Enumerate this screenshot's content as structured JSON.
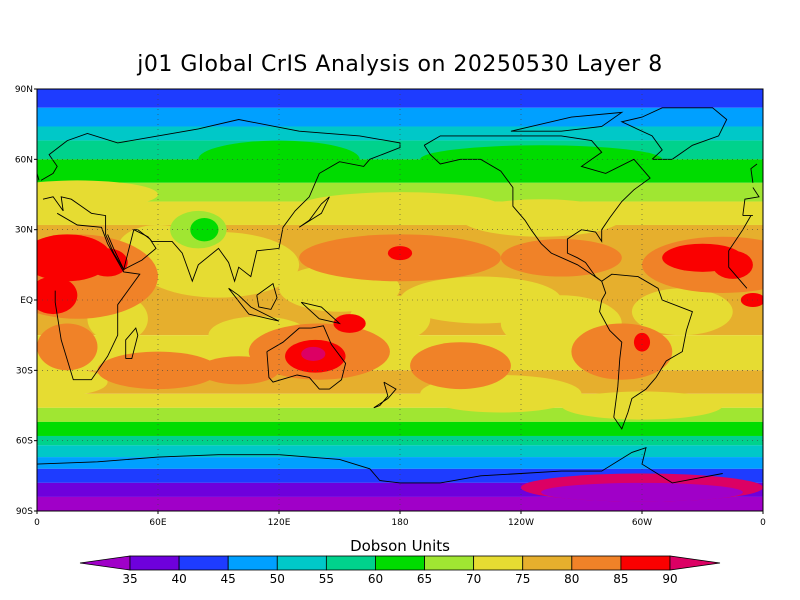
{
  "title": "j01 Global CrIS Analysis on 20250530 Layer 8",
  "colorbar": {
    "title": "Dobson Units",
    "labels": [
      "35",
      "40",
      "45",
      "50",
      "55",
      "60",
      "65",
      "70",
      "75",
      "80",
      "85",
      "90"
    ],
    "colors": [
      "#a000c8",
      "#6e00dc",
      "#1e3cff",
      "#00a0ff",
      "#00c8c8",
      "#00d28c",
      "#00dc00",
      "#a0e632",
      "#e6dc32",
      "#e6af2d",
      "#f08228",
      "#fa0000",
      "#dc0064"
    ]
  },
  "axes": {
    "lat_labels": [
      "90N",
      "60N",
      "30N",
      "EQ",
      "30S",
      "60S",
      "90S"
    ],
    "lon_labels": [
      "0",
      "60E",
      "120E",
      "180",
      "120W",
      "60W",
      "0"
    ]
  },
  "chart_data": {
    "type": "heatmap",
    "title": "j01 Global CrIS Analysis on 20250530 Layer 8",
    "units": "Dobson Units",
    "value_range": [
      35,
      90
    ],
    "x_range": [
      0,
      360
    ],
    "y_range": [
      -90,
      90
    ],
    "features": [
      {
        "lat": 80,
        "lon": 180,
        "value": 47
      },
      {
        "lat": 70,
        "lon": 180,
        "value": 52
      },
      {
        "lat": 55,
        "lon": 180,
        "value": 63
      },
      {
        "lat": 45,
        "lon": 180,
        "value": 70
      },
      {
        "lat": 20,
        "lon": 20,
        "value": 88
      },
      {
        "lat": 0,
        "lon": 10,
        "value": 88
      },
      {
        "lat": 20,
        "lon": 330,
        "value": 88
      },
      {
        "lat": 20,
        "lon": 180,
        "value": 86
      },
      {
        "lat": -25,
        "lon": 140,
        "value": 90
      },
      {
        "lat": -20,
        "lon": 295,
        "value": 86
      },
      {
        "lat": 30,
        "lon": 85,
        "value": 63
      },
      {
        "lat": -55,
        "lon": 180,
        "value": 62
      },
      {
        "lat": -70,
        "lon": 180,
        "value": 48
      },
      {
        "lat": -85,
        "lon": 180,
        "value": 40
      }
    ]
  }
}
